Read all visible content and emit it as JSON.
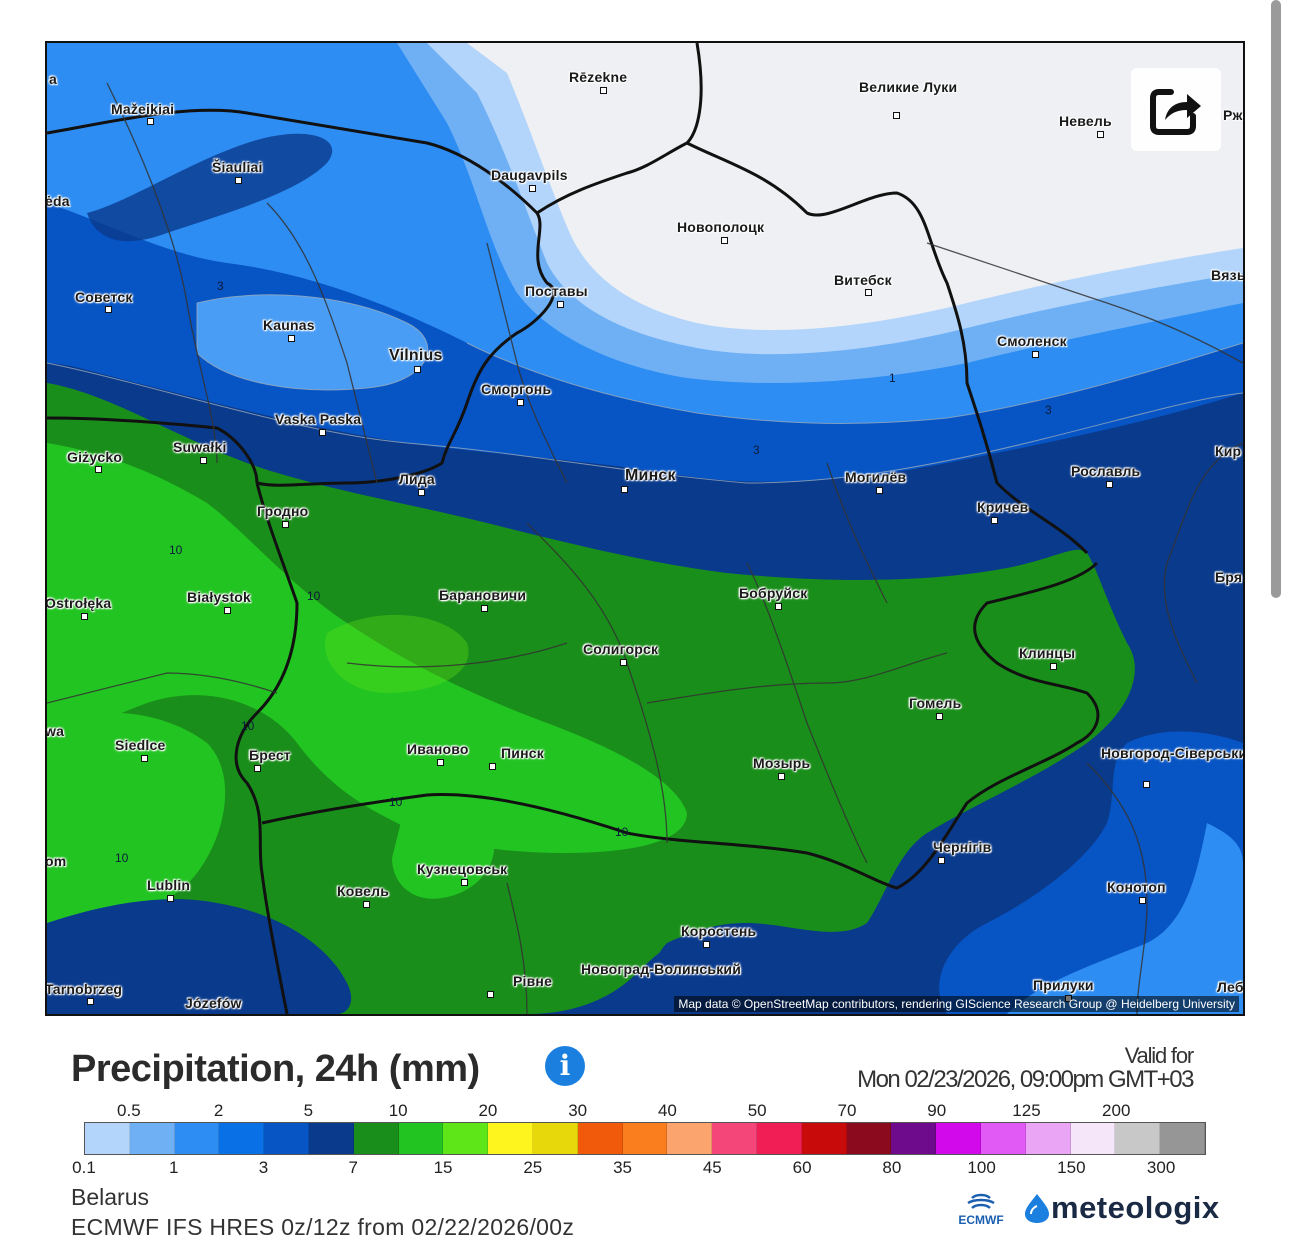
{
  "map": {
    "attribution": "Map data © OpenStreetMap contributors, rendering GIScience Research Group @ Heidelberg University",
    "cities": [
      {
        "name": "Rēzekne"
      },
      {
        "name": "Великие Луки"
      },
      {
        "name": "Невель"
      },
      {
        "name": "Mažeikiai"
      },
      {
        "name": "Šiauliai"
      },
      {
        "name": "Daugavpils"
      },
      {
        "name": "Новополоцк"
      },
      {
        "name": "Витебск"
      },
      {
        "name": "Советск"
      },
      {
        "name": "Kaunas"
      },
      {
        "name": "Поставы"
      },
      {
        "name": "Vilnius"
      },
      {
        "name": "Смоленск"
      },
      {
        "name": "Сморгонь"
      },
      {
        "name": "Vaska Paska"
      },
      {
        "name": "Giżycko"
      },
      {
        "name": "Suwałki"
      },
      {
        "name": "Лида"
      },
      {
        "name": "Минск"
      },
      {
        "name": "Могилёв"
      },
      {
        "name": "Рославль"
      },
      {
        "name": "Кричев"
      },
      {
        "name": "Гродно"
      },
      {
        "name": "Białystok"
      },
      {
        "name": "Ostrołęka"
      },
      {
        "name": "Барановичи"
      },
      {
        "name": "Бобруйск"
      },
      {
        "name": "Солигорск"
      },
      {
        "name": "Клинцы"
      },
      {
        "name": "Гомель"
      },
      {
        "name": "Siedlce"
      },
      {
        "name": "Брест"
      },
      {
        "name": "Иваново"
      },
      {
        "name": "Пинск"
      },
      {
        "name": "Мозырь"
      },
      {
        "name": "Новгород-Сіверський"
      },
      {
        "name": "Чернігів"
      },
      {
        "name": "Lublin"
      },
      {
        "name": "Кузнецовськ"
      },
      {
        "name": "Ковель"
      },
      {
        "name": "Конотоп"
      },
      {
        "name": "Коростень"
      },
      {
        "name": "Рівне"
      },
      {
        "name": "Новоград-Волинський"
      },
      {
        "name": "Прилуки"
      },
      {
        "name": "Tarnobrzeg"
      },
      {
        "name": "Józefów"
      }
    ],
    "edge_labels": [
      {
        "text": "Ржев"
      },
      {
        "text": "Вязь"
      },
      {
        "text": "Кир"
      },
      {
        "text": "Бря"
      },
      {
        "text": "Леб"
      },
      {
        "text": "ėda"
      },
      {
        "text": "wa"
      },
      {
        "text": "om"
      },
      {
        "text": "a"
      }
    ],
    "contour_labels": [
      "3",
      "1",
      "3",
      "3",
      "10",
      "10",
      "10",
      "10",
      "10",
      "10"
    ]
  },
  "share_button": {
    "icon": "share-icon"
  },
  "legend": {
    "title": "Precipitation, 24h (mm)",
    "info_icon": "info-icon",
    "info_glyph": "i",
    "valid_for_label": "Valid for",
    "valid_date": "Mon 02/23/2026, 09:00pm GMT+03",
    "colors": [
      "#b3d5fb",
      "#6fb0f5",
      "#2d8df2",
      "#0a70e6",
      "#0754c4",
      "#0a3a8c",
      "#1a8e1a",
      "#22c422",
      "#5fe618",
      "#fff51e",
      "#e6d80a",
      "#f05a0a",
      "#fa7d1e",
      "#fca46e",
      "#f5467a",
      "#f01e55",
      "#c80a0a",
      "#8c0a1e",
      "#6e0a8c",
      "#d20aeb",
      "#e15af5",
      "#eba5f5",
      "#f5e6fa",
      "#c8c8c8",
      "#969696"
    ],
    "ticks_top": [
      "0.5",
      "2",
      "5",
      "10",
      "20",
      "30",
      "40",
      "50",
      "70",
      "90",
      "125",
      "200"
    ],
    "ticks_bottom": [
      "0.1",
      "1",
      "3",
      "7",
      "15",
      "25",
      "35",
      "45",
      "60",
      "80",
      "100",
      "150",
      "300"
    ]
  },
  "footer": {
    "region": "Belarus",
    "model_run": "ECMWF IFS HRES 0z/12z from 02/22/2026/00z",
    "ecmwf_label": "ECMWF",
    "brand": "meteologix"
  }
}
